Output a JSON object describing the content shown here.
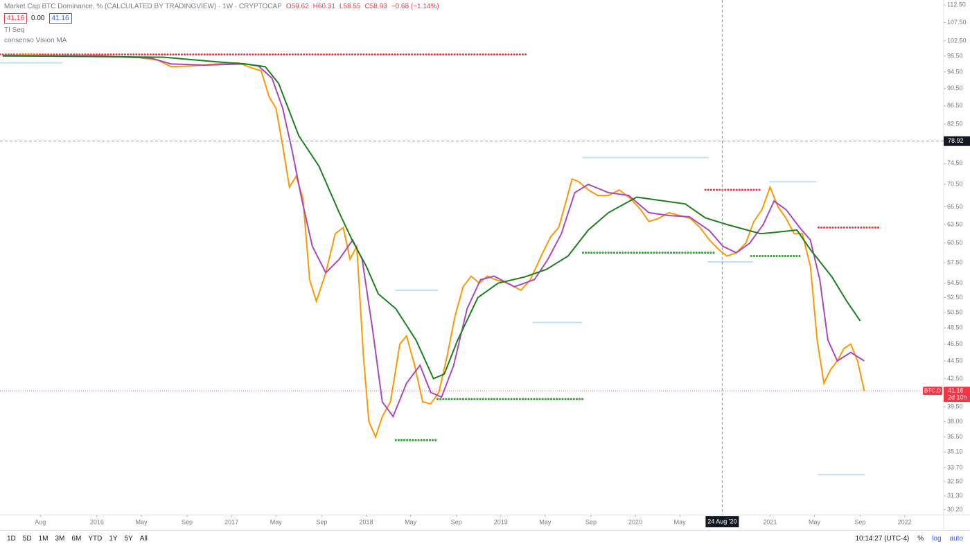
{
  "header": {
    "title": "Market Cap BTC Dominance, % (CALCULATED BY TRADINGVIEW) · 1W · CRYPTOCAP",
    "ohlc": [
      "O59.62",
      "H60.31",
      "L58.55",
      "C58.93",
      "−0.68 (−1.14%)"
    ],
    "indicator_values": [
      "41.16",
      "0.00",
      "41.16"
    ],
    "indicators": [
      "TI Seq",
      "consenso Vision MA"
    ]
  },
  "toolbar": {
    "ranges": [
      "1D",
      "5D",
      "1M",
      "3M",
      "6M",
      "YTD",
      "1Y",
      "5Y",
      "All"
    ],
    "time": "10:14:27 (UTC-4)",
    "percent": "%",
    "log": "log",
    "auto": "auto"
  },
  "chart_data": {
    "type": "line",
    "log_scale": true,
    "xlim": [
      2015.28,
      2022.29
    ],
    "ylim": [
      29.8,
      114.0
    ],
    "xticks": [
      {
        "value": 2015.58,
        "label": "Aug"
      },
      {
        "value": 2016,
        "label": "2016"
      },
      {
        "value": 2016.33,
        "label": "May"
      },
      {
        "value": 2016.67,
        "label": "Sep"
      },
      {
        "value": 2017,
        "label": "2017"
      },
      {
        "value": 2017.33,
        "label": "May"
      },
      {
        "value": 2017.67,
        "label": "Sep"
      },
      {
        "value": 2018,
        "label": "2018"
      },
      {
        "value": 2018.33,
        "label": "May"
      },
      {
        "value": 2018.67,
        "label": "Sep"
      },
      {
        "value": 2019,
        "label": "2019"
      },
      {
        "value": 2019.33,
        "label": "May"
      },
      {
        "value": 2019.67,
        "label": "Sep"
      },
      {
        "value": 2020,
        "label": "2020"
      },
      {
        "value": 2020.33,
        "label": "May"
      },
      {
        "value": 2021,
        "label": "2021"
      },
      {
        "value": 2021.33,
        "label": "May"
      },
      {
        "value": 2021.67,
        "label": "Sep"
      },
      {
        "value": 2022,
        "label": "2022"
      }
    ],
    "yticks": [
      {
        "value": 112.5,
        "label": "112.50"
      },
      {
        "value": 107.5,
        "label": "107.50"
      },
      {
        "value": 102.5,
        "label": "102.50"
      },
      {
        "value": 98.5,
        "label": "98.50"
      },
      {
        "value": 94.5,
        "label": "94.50"
      },
      {
        "value": 90.5,
        "label": "90.50"
      },
      {
        "value": 86.5,
        "label": "86.50"
      },
      {
        "value": 82.5,
        "label": "82.50"
      },
      {
        "value": 74.5,
        "label": "74.50"
      },
      {
        "value": 70.5,
        "label": "70.50"
      },
      {
        "value": 66.5,
        "label": "66.50"
      },
      {
        "value": 63.5,
        "label": "63.50"
      },
      {
        "value": 60.5,
        "label": "60.50"
      },
      {
        "value": 57.5,
        "label": "57.50"
      },
      {
        "value": 54.5,
        "label": "54.50"
      },
      {
        "value": 52.5,
        "label": "52.50"
      },
      {
        "value": 50.5,
        "label": "50.50"
      },
      {
        "value": 48.5,
        "label": "48.50"
      },
      {
        "value": 46.5,
        "label": "46.50"
      },
      {
        "value": 44.5,
        "label": "44.50"
      },
      {
        "value": 42.5,
        "label": "42.50"
      },
      {
        "value": 39.5,
        "label": "39.50"
      },
      {
        "value": 38,
        "label": "38.00"
      },
      {
        "value": 36.5,
        "label": "36.50"
      },
      {
        "value": 35.1,
        "label": "35.10"
      },
      {
        "value": 33.7,
        "label": "33.70"
      },
      {
        "value": 32.5,
        "label": "32.50"
      },
      {
        "value": 31.3,
        "label": "31.30"
      },
      {
        "value": 30.2,
        "label": "30.20"
      }
    ],
    "series": [
      {
        "color": "#ff9800",
        "x": [
          2015.3,
          2015.5,
          2015.7,
          2015.9,
          2016.1,
          2016.3,
          2016.45,
          2016.55,
          2016.7,
          2016.9,
          2017.05,
          2017.15,
          2017.22,
          2017.28,
          2017.33,
          2017.38,
          2017.43,
          2017.48,
          2017.53,
          2017.58,
          2017.63,
          2017.7,
          2017.77,
          2017.83,
          2017.88,
          2017.93,
          2017.98,
          2018.02,
          2018.07,
          2018.12,
          2018.18,
          2018.25,
          2018.3,
          2018.36,
          2018.42,
          2018.48,
          2018.54,
          2018.6,
          2018.66,
          2018.72,
          2018.78,
          2018.84,
          2018.9,
          2018.96,
          2019.05,
          2019.15,
          2019.22,
          2019.3,
          2019.37,
          2019.43,
          2019.48,
          2019.53,
          2019.58,
          2019.65,
          2019.72,
          2019.8,
          2019.88,
          2019.96,
          2020.04,
          2020.1,
          2020.17,
          2020.25,
          2020.33,
          2020.41,
          2020.48,
          2020.55,
          2020.62,
          2020.68,
          2020.75,
          2020.82,
          2020.88,
          2020.94,
          2021.0,
          2021.06,
          2021.12,
          2021.18,
          2021.24,
          2021.3,
          2021.35,
          2021.4,
          2021.45,
          2021.5,
          2021.55,
          2021.6,
          2021.65,
          2021.7
        ],
        "values": [
          98.6,
          98.8,
          98.5,
          98.7,
          98.4,
          98.2,
          97.5,
          95.8,
          96.0,
          96.5,
          96.8,
          95.5,
          94.8,
          88.5,
          86.0,
          78.0,
          70.0,
          72,
          68,
          55,
          52,
          56,
          62,
          63,
          58,
          60,
          45,
          38,
          36.5,
          38.5,
          40,
          46.5,
          47.5,
          44,
          40,
          39.8,
          41,
          45,
          50,
          54,
          55.5,
          54.5,
          55.5,
          55,
          54.5,
          53.5,
          55,
          58.5,
          61.5,
          63,
          67,
          71.5,
          71,
          69.5,
          68.5,
          68.5,
          69.5,
          68,
          66,
          64,
          64.5,
          65.5,
          65,
          64.5,
          63,
          61,
          59.5,
          58.5,
          59,
          60.5,
          64,
          66,
          70,
          66.5,
          64.5,
          62,
          62,
          57,
          47,
          42,
          43.5,
          44.5,
          46,
          46.5,
          44.5,
          41.16
        ]
      },
      {
        "color": "#ab47bc",
        "x": [
          2015.3,
          2016.0,
          2016.4,
          2016.55,
          2016.8,
          2017.1,
          2017.2,
          2017.3,
          2017.38,
          2017.45,
          2017.52,
          2017.6,
          2017.7,
          2017.8,
          2017.9,
          2017.97,
          2018.05,
          2018.12,
          2018.2,
          2018.3,
          2018.4,
          2018.48,
          2018.56,
          2018.65,
          2018.75,
          2018.85,
          2018.95,
          2019.1,
          2019.25,
          2019.35,
          2019.45,
          2019.55,
          2019.65,
          2019.8,
          2019.95,
          2020.1,
          2020.25,
          2020.4,
          2020.55,
          2020.65,
          2020.75,
          2020.85,
          2020.95,
          2021.03,
          2021.12,
          2021.22,
          2021.3,
          2021.37,
          2021.43,
          2021.5,
          2021.6,
          2021.7
        ],
        "values": [
          98.5,
          98.5,
          98.0,
          96.5,
          96.2,
          96.5,
          96.0,
          93,
          86,
          77,
          68,
          60,
          56,
          58,
          61,
          58,
          48,
          40,
          38.5,
          42,
          44,
          41,
          40.5,
          44,
          51,
          55,
          55.5,
          54,
          55,
          58,
          62,
          69,
          70.5,
          69,
          68.5,
          65.5,
          65,
          64.8,
          62.5,
          60,
          59,
          60.5,
          63.5,
          67.5,
          66,
          63,
          61,
          55,
          47,
          44.5,
          45.5,
          44.5
        ]
      },
      {
        "color": "#1b7f1b",
        "x": [
          2015.3,
          2016.5,
          2016.9,
          2017.1,
          2017.25,
          2017.35,
          2017.5,
          2017.65,
          2017.8,
          2017.9,
          2018.0,
          2018.09,
          2018.22,
          2018.37,
          2018.5,
          2018.58,
          2018.68,
          2018.83,
          2018.98,
          2019.18,
          2019.34,
          2019.5,
          2019.65,
          2019.8,
          2020.01,
          2020.16,
          2020.37,
          2020.52,
          2020.68,
          2020.83,
          2020.93,
          2021.03,
          2021.2,
          2021.3,
          2021.46,
          2021.57,
          2021.67
        ],
        "values": [
          98.6,
          98.2,
          97.0,
          96.5,
          95.8,
          91.7,
          80,
          73.9,
          65.5,
          60.8,
          57,
          53,
          51,
          47,
          42.5,
          43,
          47,
          52.5,
          54.5,
          55.4,
          56.5,
          58.5,
          62.6,
          65.5,
          68.2,
          67.7,
          67,
          64.6,
          63.5,
          62.6,
          62,
          62.2,
          62.6,
          59.5,
          55.4,
          52,
          49.4
        ]
      }
    ],
    "levels": [
      {
        "color": "#f23645",
        "y": 98.9,
        "x": [
          2015.28,
          2019.2
        ]
      },
      {
        "color": "#f23645",
        "y": 69.5,
        "x": [
          2020.52,
          2020.94
        ]
      },
      {
        "color": "#f23645",
        "y": 63.0,
        "x": [
          2021.36,
          2021.82
        ]
      },
      {
        "color": "#2e9e2e",
        "y": 59.0,
        "x": [
          2019.61,
          2020.59
        ]
      },
      {
        "color": "#2e9e2e",
        "y": 58.5,
        "x": [
          2020.86,
          2021.22
        ]
      },
      {
        "color": "#2e9e2e",
        "y": 40.3,
        "x": [
          2018.53,
          2019.61
        ]
      },
      {
        "color": "#2e9e2e",
        "y": 36.2,
        "x": [
          2018.22,
          2018.53
        ]
      },
      {
        "color": "#bfe0f5",
        "y": 96.8,
        "x": [
          2015.28,
          2015.74
        ]
      },
      {
        "color": "#bfe0f5",
        "y": 75.6,
        "x": [
          2019.61,
          2020.54
        ]
      },
      {
        "color": "#bfe0f5",
        "y": 71.0,
        "x": [
          2021.0,
          2021.34
        ]
      },
      {
        "color": "#bfe0f5",
        "y": 53.5,
        "x": [
          2018.22,
          2018.53
        ]
      },
      {
        "color": "#bfe0f5",
        "y": 49.2,
        "x": [
          2019.24,
          2019.6
        ]
      },
      {
        "color": "#bfe0f5",
        "y": 57.6,
        "x": [
          2020.54,
          2020.87
        ]
      },
      {
        "color": "#bfe0f5",
        "y": 33.1,
        "x": [
          2021.36,
          2021.7
        ]
      }
    ],
    "last_price": {
      "value": 41.16,
      "symbol": "BTC.D",
      "countdown": "2d 10h"
    },
    "crosshair": {
      "y": 78.92,
      "x": 2020.645,
      "x_label": "24 Aug '20"
    }
  }
}
